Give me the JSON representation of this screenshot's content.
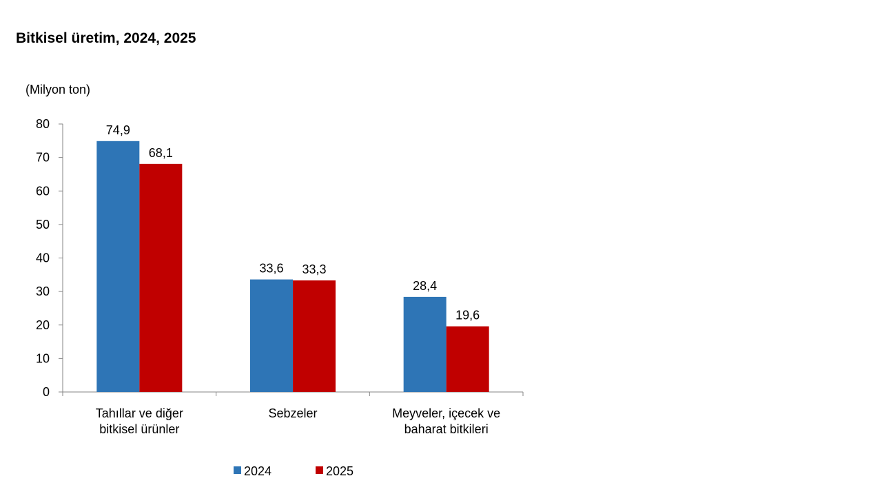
{
  "chart_data": {
    "type": "bar",
    "title": "Bitkisel üretim, 2024, 2025",
    "unit_label": "(Milyon ton)",
    "categories": [
      [
        "Tahıllar ve diğer",
        "bitkisel ürünler"
      ],
      [
        "Sebzeler"
      ],
      [
        "Meyveler, içecek ve",
        "baharat  bitkileri"
      ]
    ],
    "series": [
      {
        "name": "2024",
        "color": "#2e75b6",
        "values": [
          74.9,
          33.6,
          28.4
        ],
        "labels": [
          "74,9",
          "33,6",
          "28,4"
        ]
      },
      {
        "name": "2025",
        "color": "#c00000",
        "values": [
          68.1,
          33.3,
          19.6
        ],
        "labels": [
          "68,1",
          "33,3",
          "19,6"
        ]
      }
    ],
    "ylim": [
      0,
      80
    ],
    "yticks": [
      0,
      10,
      20,
      30,
      40,
      50,
      60,
      70,
      80
    ],
    "grid": false,
    "legend_position": "bottom"
  }
}
